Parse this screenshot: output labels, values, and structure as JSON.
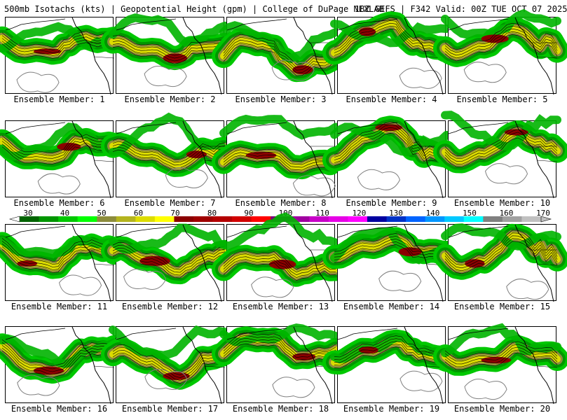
{
  "header": {
    "left": "500mb Isotachs (kts) | Geopotential Height (gpm) | College of DuPage NEXLAB",
    "right": "18Z GEFS | F342 Valid: 00Z TUE OCT 07 2025"
  },
  "colorbar": {
    "ticks": [
      "30",
      "40",
      "50",
      "60",
      "70",
      "80",
      "90",
      "100",
      "110",
      "120",
      "130",
      "140",
      "150",
      "160",
      "170"
    ],
    "colors": [
      "#006400",
      "#009600",
      "#00c800",
      "#00ff00",
      "#8c8c3c",
      "#b4b41e",
      "#dcdc00",
      "#ffff00",
      "#8b0000",
      "#a00000",
      "#b40000",
      "#d20000",
      "#ff0000",
      "#780078",
      "#a000a0",
      "#c800c8",
      "#e600e6",
      "#ff00ff",
      "#0000a0",
      "#0032c8",
      "#0064ff",
      "#0096ff",
      "#00c8ff",
      "#00ffff",
      "#808080",
      "#a0a0a0",
      "#c0c0c0"
    ]
  },
  "members": [
    {
      "label": "Ensemble Member: 1"
    },
    {
      "label": "Ensemble Member: 2"
    },
    {
      "label": "Ensemble Member: 3"
    },
    {
      "label": "Ensemble Member: 4"
    },
    {
      "label": "Ensemble Member: 5"
    },
    {
      "label": "Ensemble Member: 6"
    },
    {
      "label": "Ensemble Member: 7"
    },
    {
      "label": "Ensemble Member: 8"
    },
    {
      "label": "Ensemble Member: 9"
    },
    {
      "label": "Ensemble Member: 10"
    },
    {
      "label": "Ensemble Member: 11"
    },
    {
      "label": "Ensemble Member: 12"
    },
    {
      "label": "Ensemble Member: 13"
    },
    {
      "label": "Ensemble Member: 14"
    },
    {
      "label": "Ensemble Member: 15"
    },
    {
      "label": "Ensemble Member: 16"
    },
    {
      "label": "Ensemble Member: 17"
    },
    {
      "label": "Ensemble Member: 18"
    },
    {
      "label": "Ensemble Member: 19"
    },
    {
      "label": "Ensemble Member: 20"
    }
  ]
}
